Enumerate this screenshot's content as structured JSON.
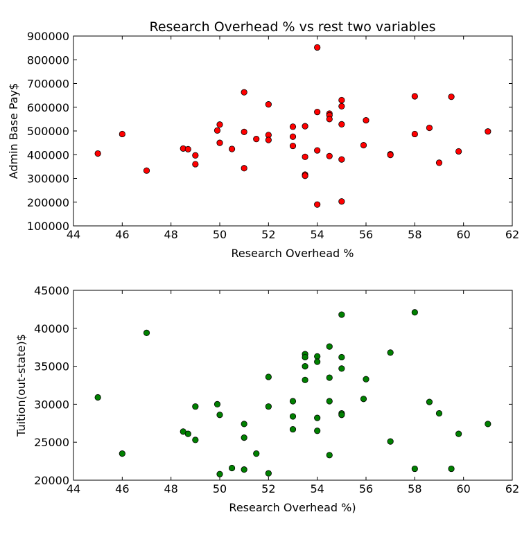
{
  "chart_data": [
    {
      "type": "scatter",
      "title": "Research Overhead % vs rest two variables",
      "xlabel": "Research Overhead %",
      "ylabel": "Admin Base Pay$",
      "xlim": [
        44,
        62
      ],
      "ylim": [
        100000,
        900000
      ],
      "xticks": [
        44,
        46,
        48,
        50,
        52,
        54,
        56,
        58,
        60,
        62
      ],
      "yticks": [
        100000,
        200000,
        300000,
        400000,
        500000,
        600000,
        700000,
        800000,
        900000
      ],
      "marker_color": "#ff0000",
      "points": [
        {
          "x": 45,
          "y": 405000
        },
        {
          "x": 46,
          "y": 487000
        },
        {
          "x": 47,
          "y": 333000
        },
        {
          "x": 48.5,
          "y": 426000
        },
        {
          "x": 48.7,
          "y": 423000
        },
        {
          "x": 49,
          "y": 397000
        },
        {
          "x": 49,
          "y": 360000
        },
        {
          "x": 49.9,
          "y": 502000
        },
        {
          "x": 50,
          "y": 527000
        },
        {
          "x": 50,
          "y": 450000
        },
        {
          "x": 50.5,
          "y": 424000
        },
        {
          "x": 51,
          "y": 663000
        },
        {
          "x": 51,
          "y": 496000
        },
        {
          "x": 51,
          "y": 343000
        },
        {
          "x": 51.5,
          "y": 466000
        },
        {
          "x": 52,
          "y": 612000
        },
        {
          "x": 52,
          "y": 483000
        },
        {
          "x": 52,
          "y": 462000
        },
        {
          "x": 53,
          "y": 518000
        },
        {
          "x": 53,
          "y": 476000
        },
        {
          "x": 53,
          "y": 437000
        },
        {
          "x": 53.5,
          "y": 520000
        },
        {
          "x": 53.5,
          "y": 391000
        },
        {
          "x": 53.5,
          "y": 316000
        },
        {
          "x": 53.5,
          "y": 311000
        },
        {
          "x": 54,
          "y": 852000
        },
        {
          "x": 54,
          "y": 580000
        },
        {
          "x": 54,
          "y": 418000
        },
        {
          "x": 54,
          "y": 190000
        },
        {
          "x": 54.5,
          "y": 573000
        },
        {
          "x": 54.5,
          "y": 566000
        },
        {
          "x": 54.5,
          "y": 550000
        },
        {
          "x": 54.5,
          "y": 394000
        },
        {
          "x": 55,
          "y": 630000
        },
        {
          "x": 55,
          "y": 604000
        },
        {
          "x": 55,
          "y": 528000
        },
        {
          "x": 55,
          "y": 380000
        },
        {
          "x": 55,
          "y": 203000
        },
        {
          "x": 56,
          "y": 545000
        },
        {
          "x": 55.9,
          "y": 440000
        },
        {
          "x": 57,
          "y": 402000
        },
        {
          "x": 57,
          "y": 399000
        },
        {
          "x": 58,
          "y": 646000
        },
        {
          "x": 58,
          "y": 487000
        },
        {
          "x": 58.6,
          "y": 513000
        },
        {
          "x": 59,
          "y": 366000
        },
        {
          "x": 59.5,
          "y": 644000
        },
        {
          "x": 59.8,
          "y": 414000
        },
        {
          "x": 61,
          "y": 498000
        }
      ]
    },
    {
      "type": "scatter",
      "title": "",
      "xlabel": "Research Overhead %)",
      "ylabel": "Tuition(out-state)$",
      "xlim": [
        44,
        62
      ],
      "ylim": [
        20000,
        45000
      ],
      "xticks": [
        44,
        46,
        48,
        50,
        52,
        54,
        56,
        58,
        60,
        62
      ],
      "yticks": [
        20000,
        25000,
        30000,
        35000,
        40000,
        45000
      ],
      "marker_color": "#008000",
      "points": [
        {
          "x": 45,
          "y": 30900
        },
        {
          "x": 46,
          "y": 23500
        },
        {
          "x": 47,
          "y": 39400
        },
        {
          "x": 48.5,
          "y": 26400
        },
        {
          "x": 48.7,
          "y": 26100
        },
        {
          "x": 49,
          "y": 29700
        },
        {
          "x": 49,
          "y": 25300
        },
        {
          "x": 49.9,
          "y": 30000
        },
        {
          "x": 50,
          "y": 28600
        },
        {
          "x": 50,
          "y": 20800
        },
        {
          "x": 50.5,
          "y": 21600
        },
        {
          "x": 51,
          "y": 27400
        },
        {
          "x": 51,
          "y": 25600
        },
        {
          "x": 51,
          "y": 21400
        },
        {
          "x": 51.5,
          "y": 23500
        },
        {
          "x": 52,
          "y": 33600
        },
        {
          "x": 52,
          "y": 29700
        },
        {
          "x": 52,
          "y": 20900
        },
        {
          "x": 53,
          "y": 30400
        },
        {
          "x": 53,
          "y": 28400
        },
        {
          "x": 53,
          "y": 26700
        },
        {
          "x": 53.5,
          "y": 36600
        },
        {
          "x": 53.5,
          "y": 36200
        },
        {
          "x": 53.5,
          "y": 35000
        },
        {
          "x": 53.5,
          "y": 33200
        },
        {
          "x": 54,
          "y": 36300
        },
        {
          "x": 54,
          "y": 35600
        },
        {
          "x": 54,
          "y": 28200
        },
        {
          "x": 54,
          "y": 26500
        },
        {
          "x": 54.5,
          "y": 37600
        },
        {
          "x": 54.5,
          "y": 33500
        },
        {
          "x": 54.5,
          "y": 30400
        },
        {
          "x": 54.5,
          "y": 23300
        },
        {
          "x": 55,
          "y": 41800
        },
        {
          "x": 55,
          "y": 36200
        },
        {
          "x": 55,
          "y": 34700
        },
        {
          "x": 55,
          "y": 28800
        },
        {
          "x": 55,
          "y": 28600
        },
        {
          "x": 56,
          "y": 33300
        },
        {
          "x": 55.9,
          "y": 30700
        },
        {
          "x": 57,
          "y": 36800
        },
        {
          "x": 57,
          "y": 25100
        },
        {
          "x": 58,
          "y": 42100
        },
        {
          "x": 58,
          "y": 21500
        },
        {
          "x": 58.6,
          "y": 30300
        },
        {
          "x": 59,
          "y": 28800
        },
        {
          "x": 59.5,
          "y": 21500
        },
        {
          "x": 59.8,
          "y": 26100
        },
        {
          "x": 61,
          "y": 27400
        }
      ]
    }
  ]
}
